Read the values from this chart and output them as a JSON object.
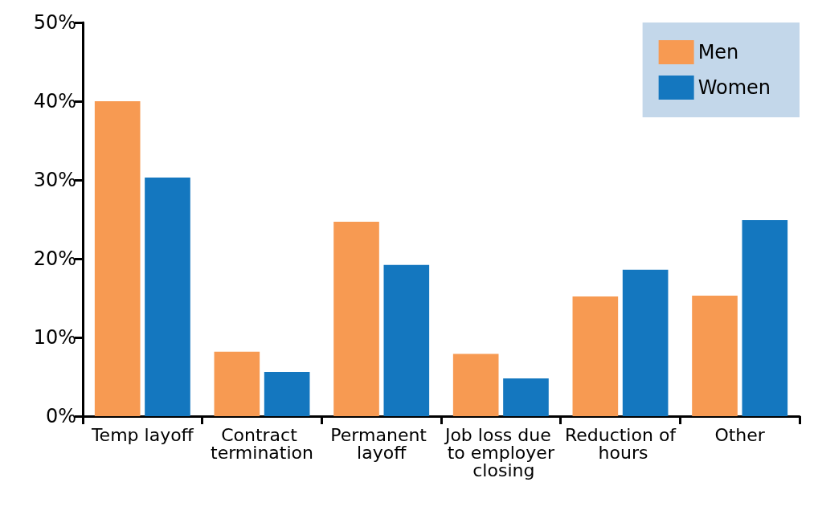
{
  "chart_data": {
    "type": "bar",
    "categories": [
      "Temp layoff",
      "Contract termination",
      "Permanent layoff",
      "Job loss due to employer closing",
      "Reduction of hours",
      "Other"
    ],
    "series": [
      {
        "name": "Men",
        "color": "#f79a52",
        "values": [
          40,
          8.2,
          24.7,
          7.9,
          15.2,
          15.3
        ]
      },
      {
        "name": "Women",
        "color": "#1477bf",
        "values": [
          30.3,
          5.6,
          19.2,
          4.8,
          18.6,
          24.9
        ]
      }
    ],
    "ylim": [
      0,
      50
    ],
    "yticks": [
      {
        "value": 0,
        "label": "0%"
      },
      {
        "value": 10,
        "label": "10%"
      },
      {
        "value": 20,
        "label": "20%"
      },
      {
        "value": 30,
        "label": "30%"
      },
      {
        "value": 40,
        "label": "40%"
      },
      {
        "value": 50,
        "label": "50%"
      }
    ],
    "grid": false,
    "legend": "top right"
  }
}
